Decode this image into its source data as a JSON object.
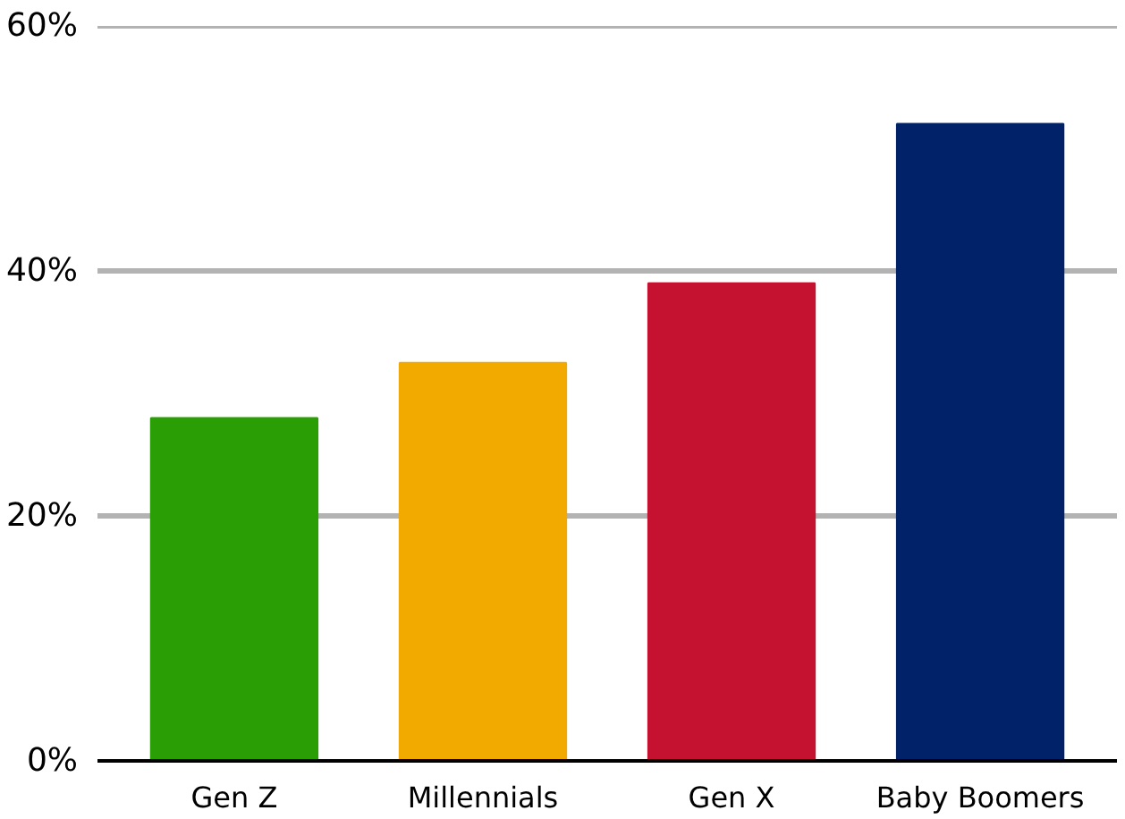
{
  "chart_data": {
    "type": "bar",
    "categories": [
      "Gen Z",
      "Millennials",
      "Gen X",
      "Baby Boomers"
    ],
    "values": [
      28,
      32.5,
      39,
      52
    ],
    "colors": [
      "#2a9e05",
      "#f2a900",
      "#c41230",
      "#012169"
    ],
    "ylim": [
      0,
      60
    ],
    "yticks": [
      {
        "value": 0,
        "label": "0%"
      },
      {
        "value": 20,
        "label": "20%"
      },
      {
        "value": 40,
        "label": "40%"
      },
      {
        "value": 60,
        "label": "60%"
      }
    ],
    "grid": "y"
  }
}
